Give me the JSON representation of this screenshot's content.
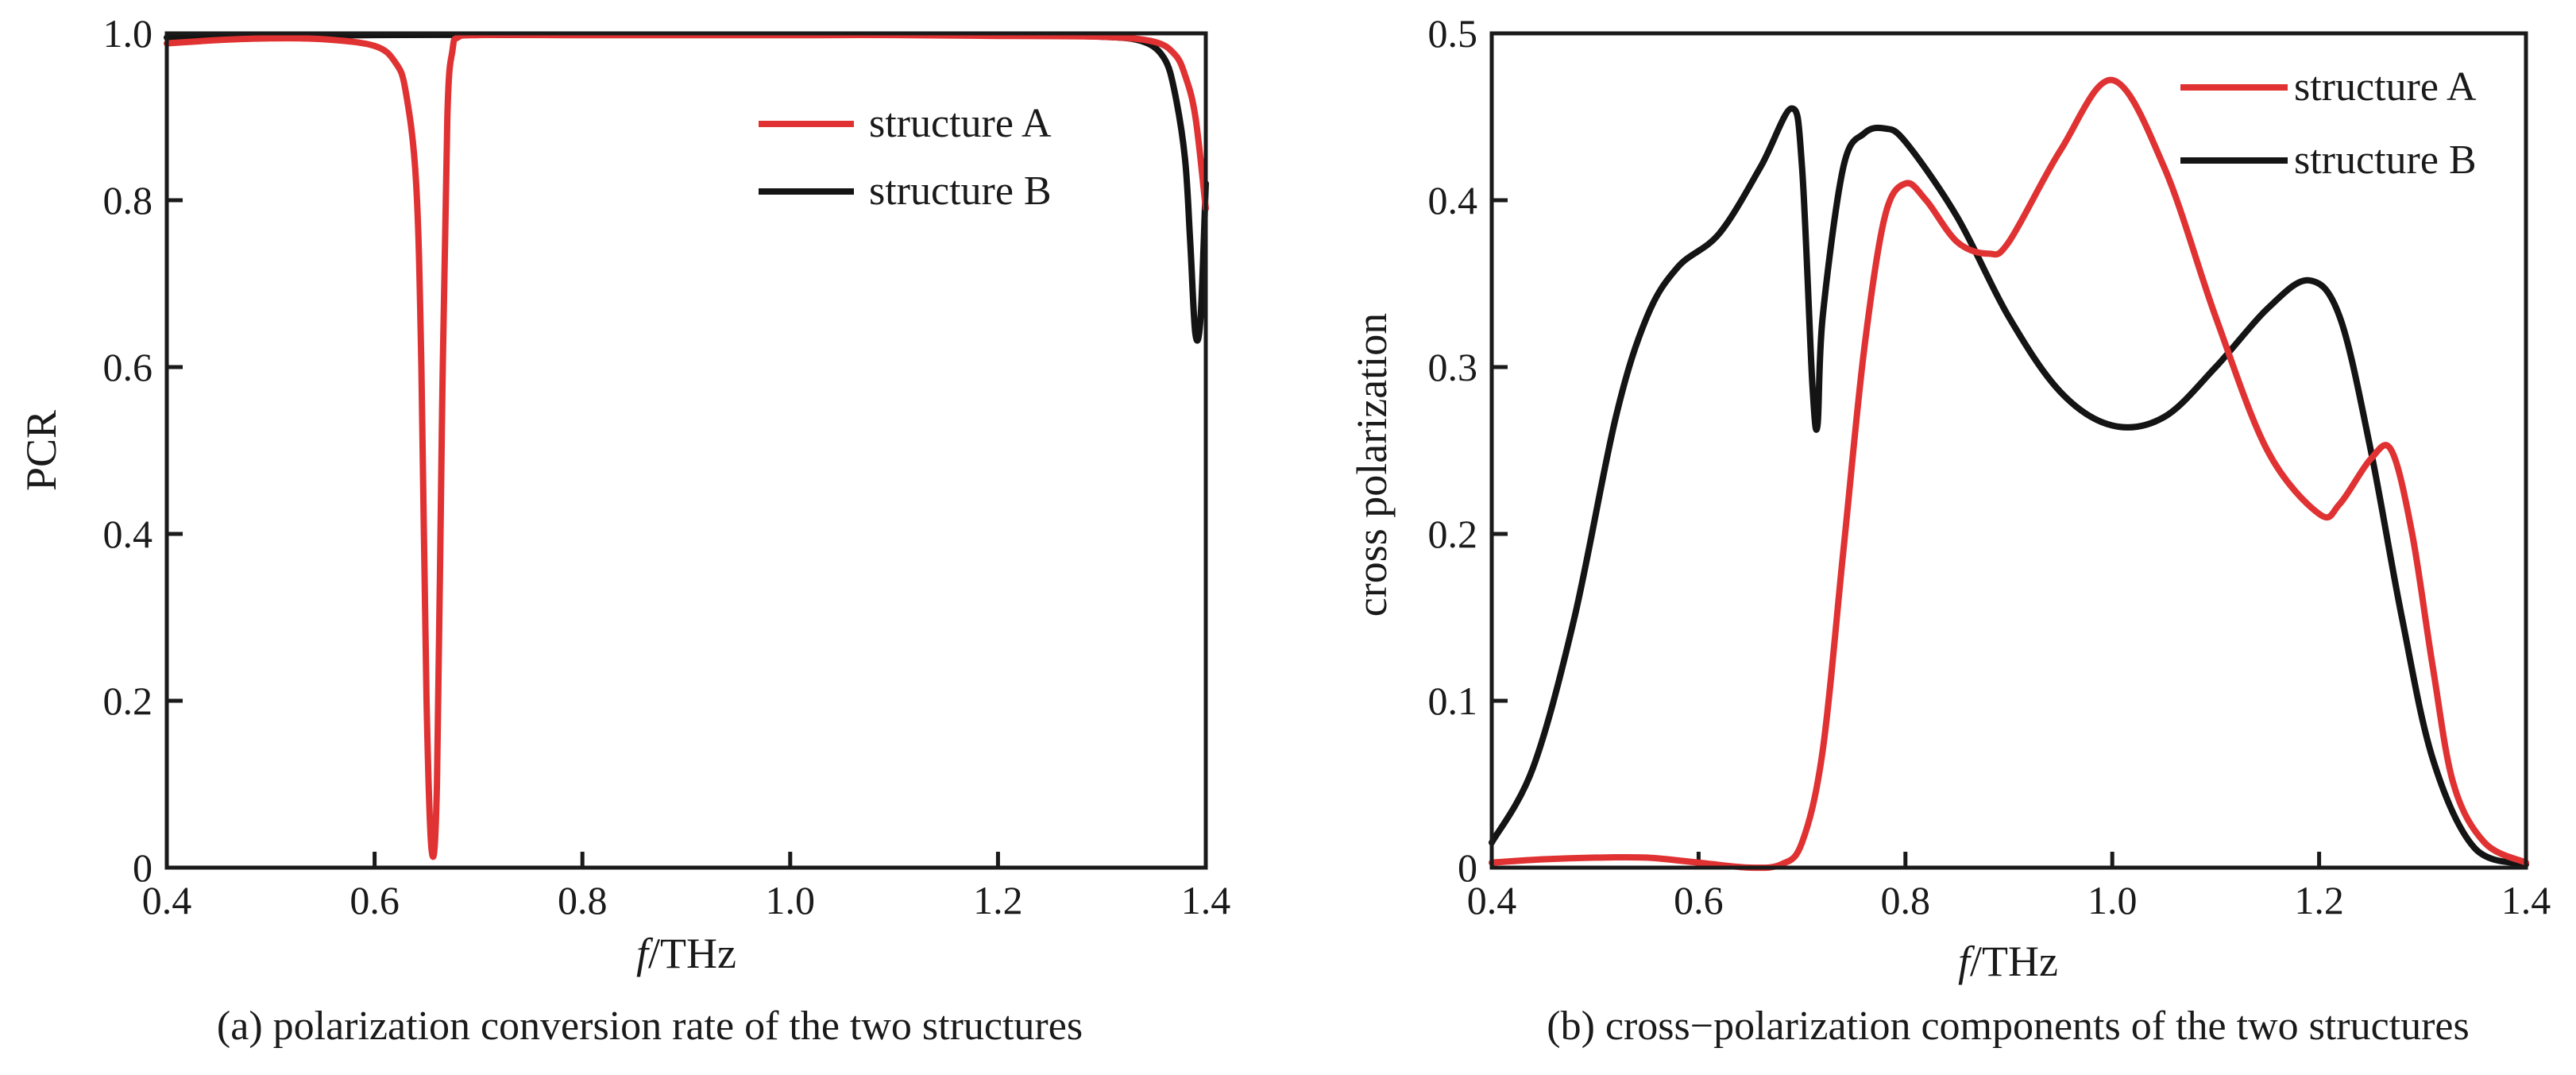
{
  "colors": {
    "structure_a": "#e03232",
    "structure_b": "#141414",
    "axis": "#1a1a1a"
  },
  "chart_data": [
    {
      "type": "line",
      "caption": "(a) polarization conversion rate of the two structures",
      "xlabel_italic": "f",
      "xlabel_unit": "/THz",
      "ylabel": "PCR",
      "xlim": [
        0.4,
        1.4
      ],
      "ylim": [
        0,
        1.0
      ],
      "xticks": [
        0.4,
        0.6,
        0.8,
        1.0,
        1.2,
        1.4
      ],
      "xtick_labels": [
        "0.4",
        "0.6",
        "0.8",
        "1.0",
        "1.2",
        "1.4"
      ],
      "yticks": [
        0,
        0.2,
        0.4,
        0.6,
        0.8,
        1.0
      ],
      "ytick_labels": [
        "0",
        "0.2",
        "0.4",
        "0.6",
        "0.8",
        "1.0"
      ],
      "grid": false,
      "legend_position": "top-right",
      "series": [
        {
          "name": "structure A",
          "color": "#e03232",
          "x": [
            0.4,
            0.45,
            0.5,
            0.55,
            0.6,
            0.62,
            0.63,
            0.64,
            0.645,
            0.65,
            0.655,
            0.66,
            0.665,
            0.67,
            0.675,
            0.68,
            0.7,
            0.8,
            0.9,
            1.0,
            1.1,
            1.2,
            1.3,
            1.35,
            1.37,
            1.38,
            1.39,
            1.4
          ],
          "y": [
            0.988,
            0.992,
            0.994,
            0.993,
            0.985,
            0.965,
            0.93,
            0.82,
            0.6,
            0.2,
            0.02,
            0.1,
            0.55,
            0.9,
            0.98,
            0.995,
            0.998,
            0.998,
            0.998,
            0.998,
            0.998,
            0.997,
            0.996,
            0.99,
            0.975,
            0.95,
            0.9,
            0.79
          ]
        },
        {
          "name": "structure B",
          "color": "#141414",
          "x": [
            0.4,
            0.6,
            0.8,
            1.0,
            1.2,
            1.3,
            1.34,
            1.36,
            1.37,
            1.38,
            1.385,
            1.39,
            1.395,
            1.4
          ],
          "y": [
            0.995,
            0.998,
            0.998,
            0.998,
            0.998,
            0.996,
            0.99,
            0.97,
            0.93,
            0.85,
            0.75,
            0.64,
            0.66,
            0.82
          ]
        }
      ]
    },
    {
      "type": "line",
      "caption": "(b) cross−polarization components of the two structures",
      "xlabel_italic": "f",
      "xlabel_unit": "/THz",
      "ylabel": "cross polarization",
      "xlim": [
        0.4,
        1.4
      ],
      "ylim": [
        0,
        0.5
      ],
      "xticks": [
        0.4,
        0.6,
        0.8,
        1.0,
        1.2,
        1.4
      ],
      "xtick_labels": [
        "0.4",
        "0.6",
        "0.8",
        "1.0",
        "1.2",
        "1.4"
      ],
      "yticks": [
        0,
        0.1,
        0.2,
        0.3,
        0.4,
        0.5
      ],
      "ytick_labels": [
        "0",
        "0.1",
        "0.2",
        "0.3",
        "0.4",
        "0.5"
      ],
      "grid": false,
      "legend_position": "top-right",
      "series": [
        {
          "name": "structure A",
          "color": "#e03232",
          "x": [
            0.4,
            0.45,
            0.5,
            0.55,
            0.6,
            0.65,
            0.68,
            0.7,
            0.72,
            0.74,
            0.76,
            0.78,
            0.8,
            0.82,
            0.85,
            0.88,
            0.9,
            0.95,
            1.0,
            1.05,
            1.1,
            1.15,
            1.2,
            1.22,
            1.25,
            1.27,
            1.29,
            1.31,
            1.33,
            1.36,
            1.4
          ],
          "y": [
            0.003,
            0.005,
            0.006,
            0.006,
            0.003,
            0.0,
            0.002,
            0.015,
            0.07,
            0.19,
            0.31,
            0.39,
            0.41,
            0.4,
            0.375,
            0.368,
            0.375,
            0.43,
            0.472,
            0.42,
            0.33,
            0.25,
            0.212,
            0.218,
            0.245,
            0.25,
            0.2,
            0.12,
            0.05,
            0.015,
            0.003
          ]
        },
        {
          "name": "structure B",
          "color": "#141414",
          "x": [
            0.4,
            0.44,
            0.48,
            0.52,
            0.55,
            0.58,
            0.62,
            0.66,
            0.69,
            0.7,
            0.71,
            0.715,
            0.72,
            0.74,
            0.76,
            0.78,
            0.8,
            0.85,
            0.9,
            0.95,
            1.0,
            1.05,
            1.1,
            1.15,
            1.19,
            1.22,
            1.25,
            1.28,
            1.31,
            1.35,
            1.4
          ],
          "y": [
            0.015,
            0.06,
            0.15,
            0.27,
            0.33,
            0.36,
            0.38,
            0.42,
            0.455,
            0.42,
            0.29,
            0.265,
            0.33,
            0.42,
            0.44,
            0.443,
            0.435,
            0.39,
            0.33,
            0.285,
            0.265,
            0.27,
            0.3,
            0.335,
            0.352,
            0.33,
            0.25,
            0.15,
            0.065,
            0.012,
            0.002
          ]
        }
      ]
    }
  ]
}
